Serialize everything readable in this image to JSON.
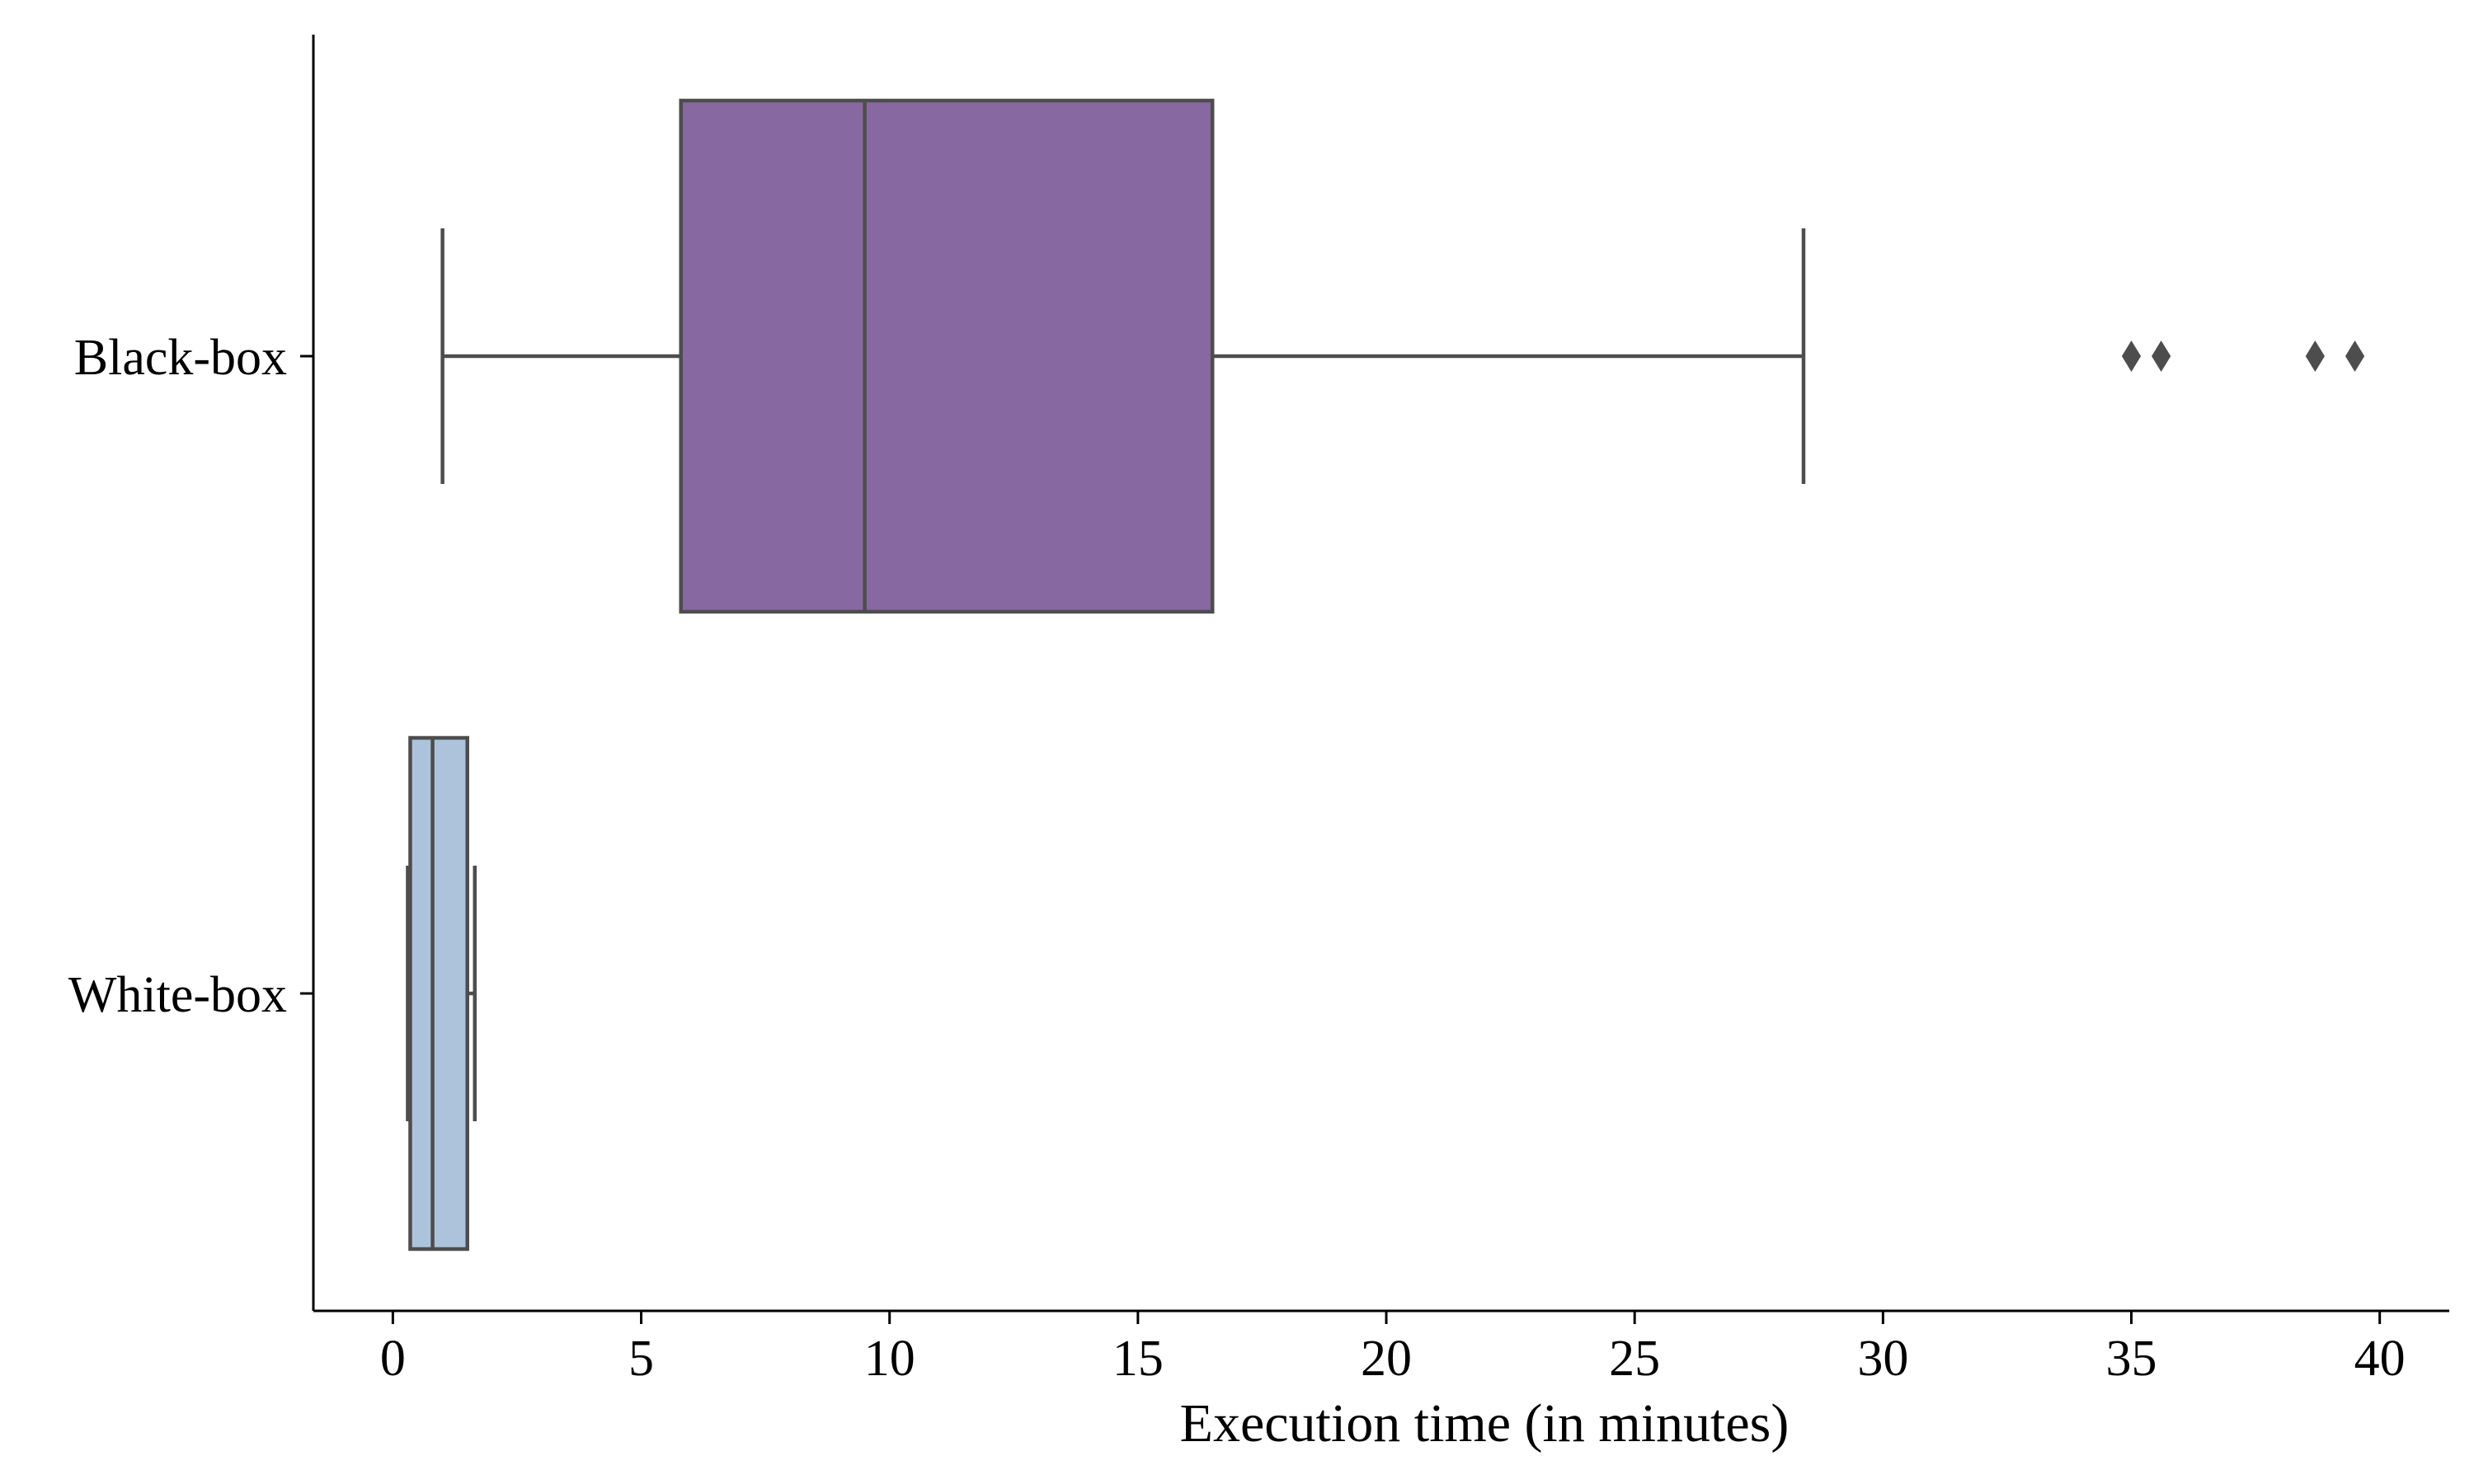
{
  "chart_data": {
    "type": "box",
    "orientation": "horizontal",
    "title": "",
    "xlabel": "Execution time (in minutes)",
    "ylabel": "",
    "xlim": [
      -1.6,
      41.4
    ],
    "xticks": [
      "0",
      "5",
      "10",
      "15",
      "20",
      "25",
      "30",
      "35",
      "40"
    ],
    "xtick_values": [
      0,
      5,
      10,
      15,
      20,
      25,
      30,
      35,
      40
    ],
    "categories": [
      "Black-box",
      "White-box"
    ],
    "series": [
      {
        "name": "Black-box",
        "color": "#8868a0",
        "whisker_low": 1.0,
        "q1": 5.8,
        "median": 9.5,
        "q3": 16.5,
        "whisker_high": 28.4,
        "outliers": [
          35.0,
          35.6,
          38.7,
          39.5
        ]
      },
      {
        "name": "White-box",
        "color": "#acc3db",
        "whisker_low": 0.3,
        "q1": 0.35,
        "median": 0.8,
        "q3": 1.5,
        "whisker_high": 1.65,
        "outliers": []
      }
    ],
    "grid": false,
    "legend": "none",
    "edge_color": "#4d4d4d",
    "axis_color": "#000000"
  }
}
